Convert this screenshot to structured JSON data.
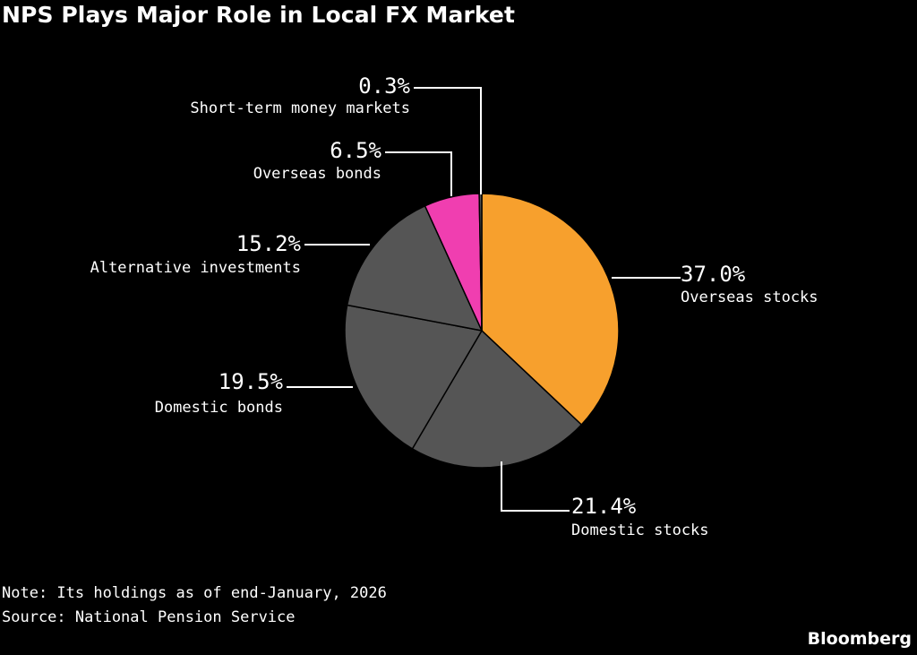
{
  "title": "NPS Plays Major Role in Local FX Market",
  "note": "Note: Its holdings as of end-January, 2026",
  "source": "Source: National Pension Service",
  "brand": "Bloomberg",
  "colors": {
    "background": "#000000",
    "overseas_stocks": "#F7A02D",
    "domestic": "#555555",
    "overseas_bonds": "#F03EB0",
    "short_term": "#555555"
  },
  "chart_data": {
    "type": "pie",
    "unit": "%",
    "slices": [
      {
        "label": "Overseas stocks",
        "value": 37.0,
        "display": "37.0%",
        "color": "#F7A02D"
      },
      {
        "label": "Domestic stocks",
        "value": 21.4,
        "display": "21.4%",
        "color": "#555555"
      },
      {
        "label": "Domestic bonds",
        "value": 19.5,
        "display": "19.5%",
        "color": "#555555"
      },
      {
        "label": "Alternative investments",
        "value": 15.2,
        "display": "15.2%",
        "color": "#555555"
      },
      {
        "label": "Overseas bonds",
        "value": 6.5,
        "display": "6.5%",
        "color": "#F03EB0"
      },
      {
        "label": "Short-term money markets",
        "value": 0.3,
        "display": "0.3%",
        "color": "#555555"
      }
    ]
  }
}
